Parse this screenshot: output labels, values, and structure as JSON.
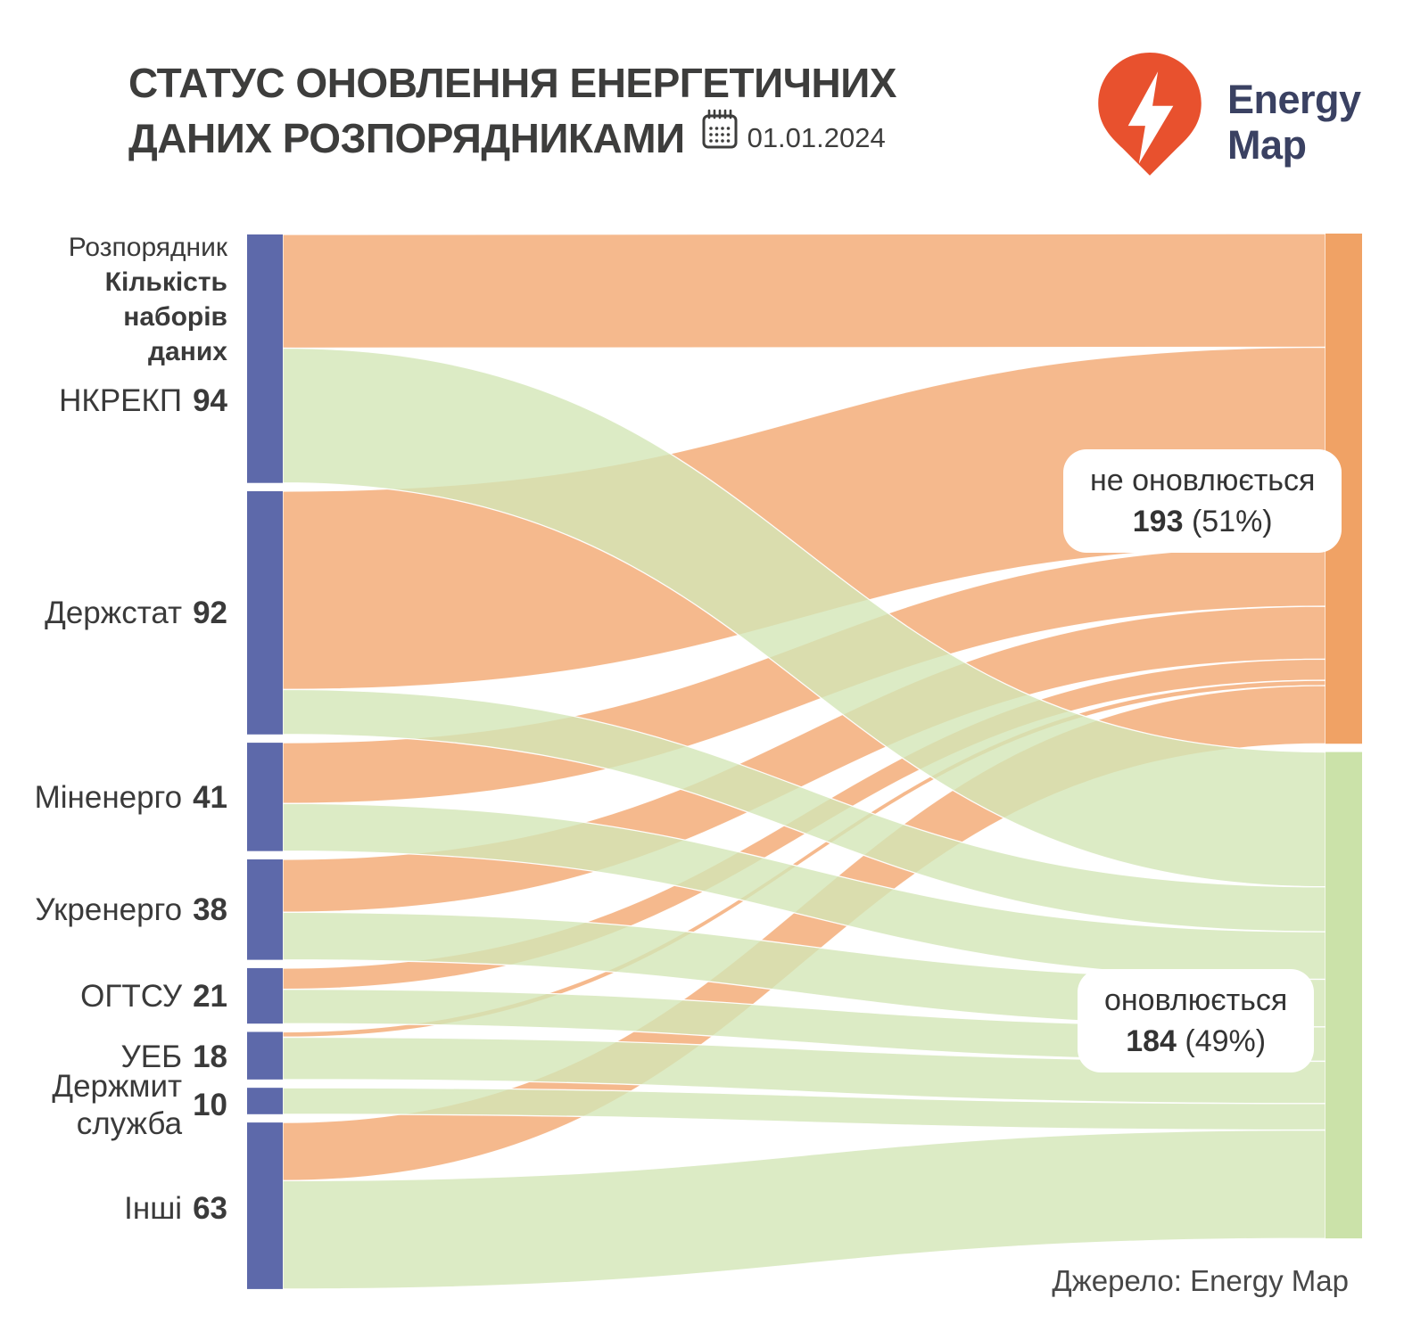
{
  "header": {
    "title_line1": "СТАТУС ОНОВЛЕННЯ ЕНЕРГЕТИЧНИХ",
    "title_line2": "ДАНИХ РОЗПОРЯДНИКАМИ",
    "date": "01.01.2024",
    "calendar_icon": "calendar-icon"
  },
  "logo": {
    "brand_line1": "Energy",
    "brand_line2": "Map",
    "pin_icon": "lightning-pin-icon"
  },
  "colors": {
    "source_node": "#5d69aa",
    "not_updated_node": "#f0a265",
    "not_updated_flow": "#f2a770",
    "updated_node": "#cbe2a9",
    "updated_flow": "#d3e6b7",
    "brand_orange": "#e8512e",
    "brand_navy": "#3a4162",
    "title_text": "#3d3d3c"
  },
  "chart_data": {
    "type": "sankey",
    "title": "СТАТУС ОНОВЛЕННЯ ЕНЕРГЕТИЧНИХ ДАНИХ РОЗПОРЯДНИКАМИ",
    "date": "01.01.2024",
    "column_header": {
      "line1": "Розпорядник",
      "line2": "Кількість наборів",
      "line3": "даних"
    },
    "sources": [
      {
        "key": "nkrekp",
        "name": "НКРЕКП",
        "value": 94,
        "not_updated": 43,
        "updated": 51
      },
      {
        "key": "derzhstat",
        "name": "Держстат",
        "value": 92,
        "not_updated": 75,
        "updated": 17
      },
      {
        "key": "minenergo",
        "name": "Міненерго",
        "value": 41,
        "not_updated": 23,
        "updated": 18
      },
      {
        "key": "ukrenergo",
        "name": "Укренерго",
        "value": 38,
        "not_updated": 20,
        "updated": 18
      },
      {
        "key": "ogtsu",
        "name": "ОГТСУ",
        "value": 21,
        "not_updated": 8,
        "updated": 13
      },
      {
        "key": "ueb",
        "name": "УЕБ",
        "value": 18,
        "not_updated": 2,
        "updated": 16
      },
      {
        "key": "derzhmyt",
        "name": "Держмит служба",
        "value": 10,
        "not_updated": 0,
        "updated": 10
      },
      {
        "key": "inshi",
        "name": "Інші",
        "value": 63,
        "not_updated": 22,
        "updated": 41
      }
    ],
    "targets": [
      {
        "key": "not-updated",
        "label": "не оновлюється",
        "value": 193,
        "percent_display": "(51%)"
      },
      {
        "key": "updated",
        "label": "оновлюється",
        "value": 184,
        "percent_display": "(49%)"
      }
    ],
    "legend_position": "right",
    "flow_note": "per-source splits estimated from ribbon widths"
  },
  "source_note": "Джерело: Energy Map"
}
